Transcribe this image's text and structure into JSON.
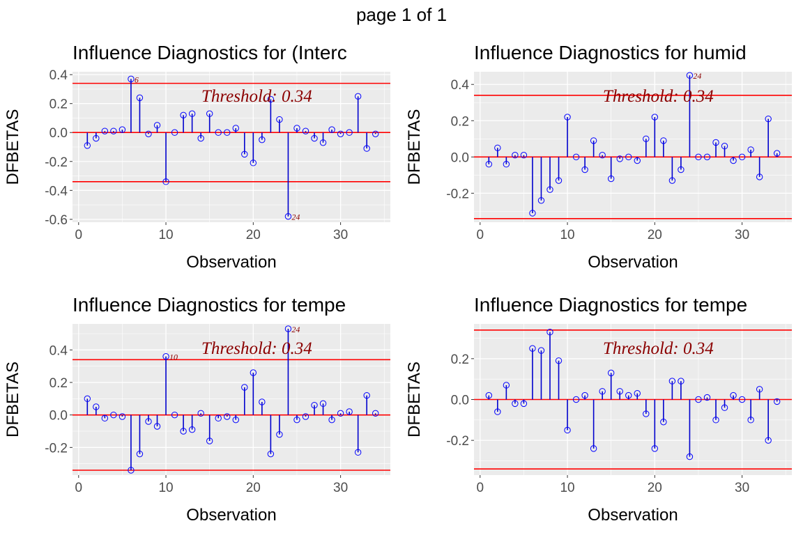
{
  "page_title": "page 1 of 1",
  "colors": {
    "panel_bg": "#ebebeb",
    "grid": "#ffffff",
    "stem": "#0000cd",
    "point": "#0000ff",
    "threshold_line": "#ff0000",
    "threshold_text": "#8b0000"
  },
  "chart_data": [
    {
      "type": "scatter",
      "title": "Influence Diagnostics for (Interc",
      "xlabel": "Observation",
      "ylabel": "DFBETAS",
      "xlim": [
        -0.7,
        35.7
      ],
      "ylim": [
        -0.62,
        0.42
      ],
      "xticks": [
        0,
        10,
        20,
        30
      ],
      "xtick_labels": [
        "0",
        "10",
        "20",
        "30"
      ],
      "yticks": [
        -0.6,
        -0.4,
        -0.2,
        0.0,
        0.2,
        0.4
      ],
      "ytick_labels": [
        "-0.6",
        "-0.4",
        "-0.2",
        "0.0",
        "0.2",
        "0.4"
      ],
      "threshold": 0.34,
      "threshold_label": "Threshold: 0.34",
      "x": [
        1,
        2,
        3,
        4,
        5,
        6,
        7,
        8,
        9,
        10,
        11,
        12,
        13,
        14,
        15,
        16,
        17,
        18,
        19,
        20,
        21,
        22,
        23,
        24,
        25,
        26,
        27,
        28,
        29,
        30,
        31,
        32,
        33,
        34
      ],
      "values": [
        -0.09,
        -0.04,
        0.01,
        0.01,
        0.02,
        0.37,
        0.24,
        -0.01,
        0.05,
        -0.34,
        0.0,
        0.12,
        0.13,
        -0.04,
        0.13,
        0.0,
        0.0,
        0.03,
        -0.15,
        -0.21,
        -0.05,
        0.23,
        0.09,
        -0.58,
        0.03,
        0.01,
        -0.04,
        -0.07,
        0.02,
        -0.01,
        0.0,
        0.25,
        -0.11,
        -0.01
      ],
      "outlier_labels": [
        {
          "x": 6,
          "label": "6"
        },
        {
          "x": 24,
          "label": "24"
        }
      ]
    },
    {
      "type": "scatter",
      "title": "Influence Diagnostics for humid",
      "xlabel": "Observation",
      "ylabel": "DFBETAS",
      "xlim": [
        -0.7,
        35.7
      ],
      "ylim": [
        -0.36,
        0.47
      ],
      "xticks": [
        0,
        10,
        20,
        30
      ],
      "xtick_labels": [
        "0",
        "10",
        "20",
        "30"
      ],
      "yticks": [
        -0.2,
        0.0,
        0.2,
        0.4
      ],
      "ytick_labels": [
        "-0.2",
        "0.0",
        "0.2",
        "0.4"
      ],
      "threshold": 0.34,
      "threshold_label": "Threshold: 0.34",
      "x": [
        1,
        2,
        3,
        4,
        5,
        6,
        7,
        8,
        9,
        10,
        11,
        12,
        13,
        14,
        15,
        16,
        17,
        18,
        19,
        20,
        21,
        22,
        23,
        24,
        25,
        26,
        27,
        28,
        29,
        30,
        31,
        32,
        33,
        34
      ],
      "values": [
        -0.04,
        0.05,
        -0.04,
        0.01,
        0.01,
        -0.31,
        -0.24,
        -0.18,
        -0.13,
        0.22,
        0.0,
        -0.07,
        0.09,
        0.01,
        -0.12,
        -0.01,
        0.0,
        -0.02,
        0.1,
        0.22,
        0.09,
        -0.13,
        -0.07,
        0.45,
        0.0,
        0.0,
        0.08,
        0.06,
        -0.02,
        0.0,
        0.04,
        -0.11,
        0.21,
        0.02
      ],
      "outlier_labels": [
        {
          "x": 24,
          "label": "24"
        }
      ]
    },
    {
      "type": "scatter",
      "title": "Influence Diagnostics for tempe",
      "xlabel": "Observation",
      "ylabel": "DFBETAS",
      "xlim": [
        -0.7,
        35.7
      ],
      "ylim": [
        -0.37,
        0.56
      ],
      "xticks": [
        0,
        10,
        20,
        30
      ],
      "xtick_labels": [
        "0",
        "10",
        "20",
        "30"
      ],
      "yticks": [
        -0.2,
        0.0,
        0.2,
        0.4
      ],
      "ytick_labels": [
        "-0.2",
        "0.0",
        "0.2",
        "0.4"
      ],
      "threshold": 0.34,
      "threshold_label": "Threshold: 0.34",
      "x": [
        1,
        2,
        3,
        4,
        5,
        6,
        7,
        8,
        9,
        10,
        11,
        12,
        13,
        14,
        15,
        16,
        17,
        18,
        19,
        20,
        21,
        22,
        23,
        24,
        25,
        26,
        27,
        28,
        29,
        30,
        31,
        32,
        33,
        34
      ],
      "values": [
        0.1,
        0.05,
        -0.02,
        0.0,
        -0.01,
        -0.34,
        -0.24,
        -0.04,
        -0.07,
        0.36,
        0.0,
        -0.1,
        -0.09,
        0.01,
        -0.16,
        -0.02,
        -0.01,
        -0.03,
        0.17,
        0.26,
        0.08,
        -0.24,
        -0.12,
        0.53,
        -0.03,
        -0.01,
        0.06,
        0.07,
        -0.03,
        0.01,
        0.02,
        -0.23,
        0.12,
        0.01
      ],
      "outlier_labels": [
        {
          "x": 10,
          "label": "10"
        },
        {
          "x": 24,
          "label": "24"
        }
      ]
    },
    {
      "type": "scatter",
      "title": "Influence Diagnostics for tempe",
      "xlabel": "Observation",
      "ylabel": "DFBETAS",
      "xlim": [
        -0.7,
        35.7
      ],
      "ylim": [
        -0.37,
        0.37
      ],
      "xticks": [
        0,
        10,
        20,
        30
      ],
      "xtick_labels": [
        "0",
        "10",
        "20",
        "30"
      ],
      "yticks": [
        -0.2,
        0.0,
        0.2
      ],
      "ytick_labels": [
        "-0.2",
        "0.0",
        "0.2"
      ],
      "threshold": 0.34,
      "threshold_label": "Threshold: 0.34",
      "x": [
        1,
        2,
        3,
        4,
        5,
        6,
        7,
        8,
        9,
        10,
        11,
        12,
        13,
        14,
        15,
        16,
        17,
        18,
        19,
        20,
        21,
        22,
        23,
        24,
        25,
        26,
        27,
        28,
        29,
        30,
        31,
        32,
        33,
        34
      ],
      "values": [
        0.02,
        -0.06,
        0.07,
        -0.02,
        -0.02,
        0.25,
        0.24,
        0.33,
        0.19,
        -0.15,
        0.0,
        0.02,
        -0.24,
        0.04,
        0.13,
        0.04,
        0.02,
        0.03,
        -0.07,
        -0.24,
        -0.11,
        0.09,
        0.09,
        -0.28,
        0.0,
        0.01,
        -0.1,
        -0.04,
        0.02,
        0.0,
        -0.1,
        0.05,
        -0.2,
        -0.01
      ],
      "outlier_labels": []
    }
  ]
}
